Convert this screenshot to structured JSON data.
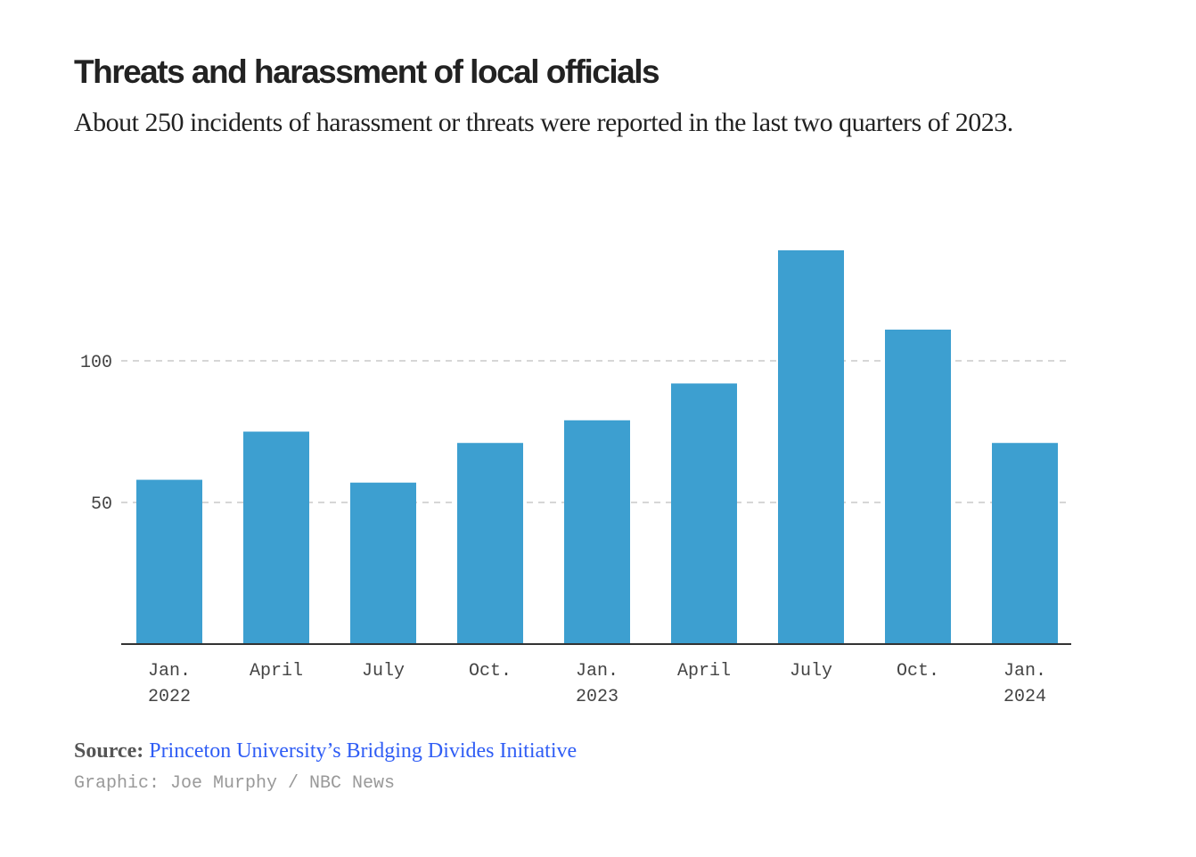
{
  "title": "Threats and harassment of local officials",
  "subtitle": "About 250 incidents of harassment or threats were reported in the last two quarters of 2023.",
  "source_label": "Source:",
  "source_link": "Princeton University’s Bridging Divides Initiative",
  "credit": "Graphic: Joe Murphy / NBC News",
  "colors": {
    "bar": "#3d9fd0",
    "grid": "#c8c8c8",
    "link": "#2f5df5"
  },
  "chart_data": {
    "type": "bar",
    "categories": [
      [
        "Jan.",
        "2022"
      ],
      [
        "April",
        ""
      ],
      [
        "July",
        ""
      ],
      [
        "Oct.",
        ""
      ],
      [
        "Jan.",
        "2023"
      ],
      [
        "April",
        ""
      ],
      [
        "July",
        ""
      ],
      [
        "Oct.",
        ""
      ],
      [
        "Jan.",
        "2024"
      ]
    ],
    "values": [
      58,
      75,
      57,
      71,
      79,
      92,
      139,
      111,
      71
    ],
    "yticks": [
      50,
      100
    ],
    "ylim": [
      0,
      145
    ],
    "grid": true,
    "xlabel": "",
    "ylabel": ""
  }
}
